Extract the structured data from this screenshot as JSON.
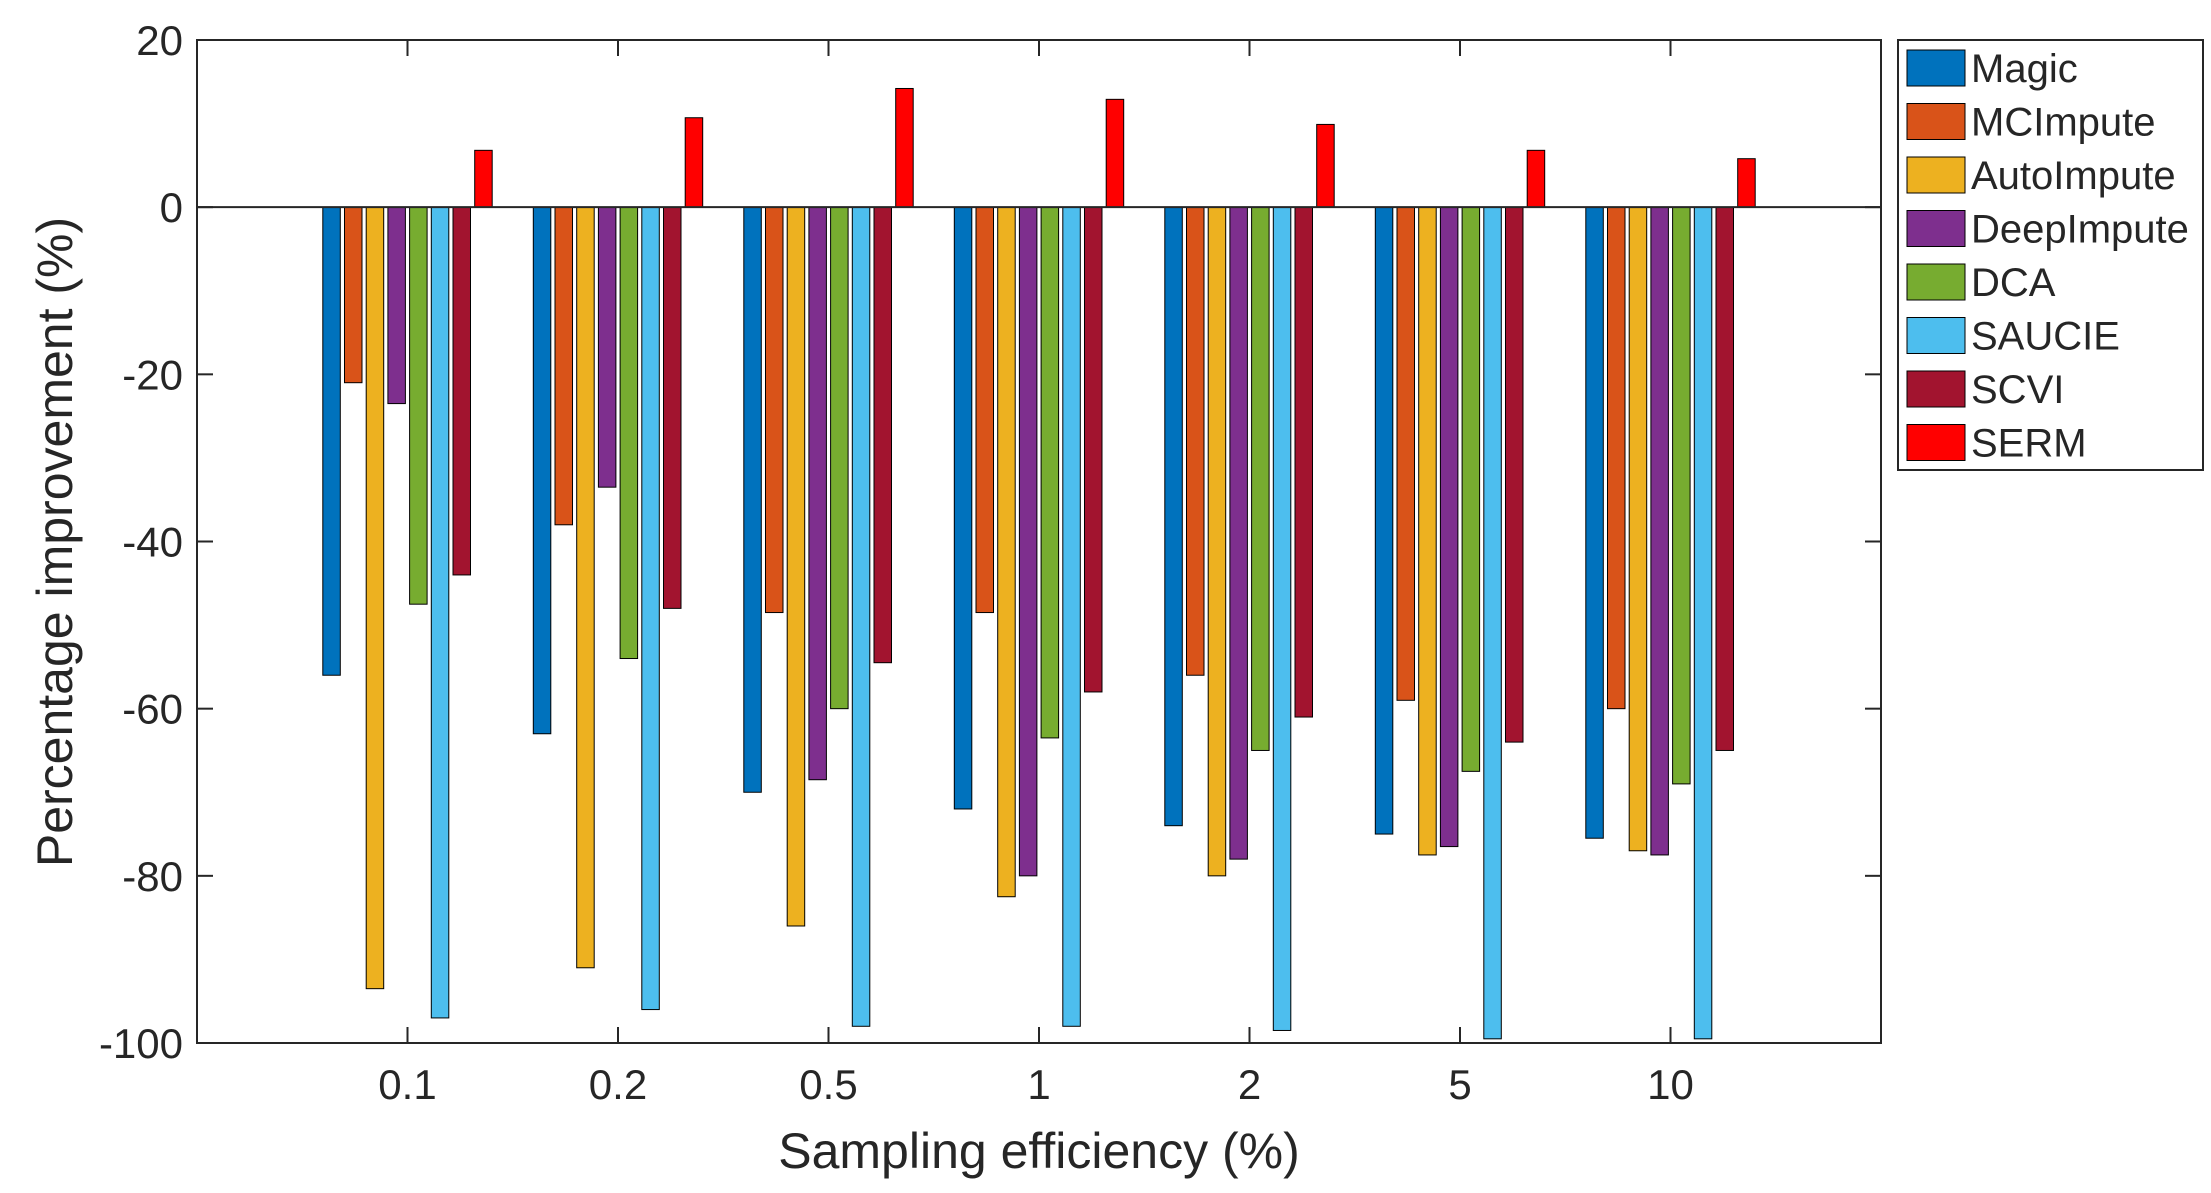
{
  "chart_data": {
    "type": "bar",
    "title": "",
    "xlabel": "Sampling efficiency (%)",
    "ylabel": "Percentage improvement (%)",
    "ylim": [
      -100,
      20
    ],
    "yticks": [
      "20",
      "0",
      "-20",
      "-40",
      "-60",
      "-80",
      "-100"
    ],
    "grid": false,
    "legend_position": "right, outside plot",
    "categories": [
      "0.1",
      "0.2",
      "0.5",
      "1",
      "2",
      "5",
      "10"
    ],
    "series": [
      {
        "name": "Magic",
        "color": "#0072BD",
        "values": [
          -56,
          -63,
          -70,
          -72,
          -74,
          -75,
          -75.5
        ]
      },
      {
        "name": "MCImpute",
        "color": "#D95319",
        "values": [
          -21,
          -38,
          -48.5,
          -48.5,
          -56,
          -59,
          -60
        ]
      },
      {
        "name": "AutoImpute",
        "color": "#EDB120",
        "values": [
          -93.5,
          -91,
          -86,
          -82.5,
          -80,
          -77.5,
          -77
        ]
      },
      {
        "name": "DeepImpute",
        "color": "#7E2F8E",
        "values": [
          -23.5,
          -33.5,
          -68.5,
          -80,
          -78,
          -76.5,
          -77.5
        ]
      },
      {
        "name": "DCA",
        "color": "#77AC30",
        "values": [
          -47.5,
          -54,
          -60,
          -63.5,
          -65,
          -67.5,
          -69
        ]
      },
      {
        "name": "SAUCIE",
        "color": "#4DBEEE",
        "values": [
          -97,
          -96,
          -98,
          -98,
          -98.5,
          -99.5,
          -99.5
        ]
      },
      {
        "name": "SCVI",
        "color": "#A2142F",
        "values": [
          -44,
          -48,
          -54.5,
          -58,
          -61,
          -64,
          -65
        ]
      },
      {
        "name": "SERM",
        "color": "#FF0000",
        "values": [
          6.8,
          10.7,
          14.2,
          12.9,
          9.9,
          6.8,
          5.8
        ]
      }
    ]
  }
}
